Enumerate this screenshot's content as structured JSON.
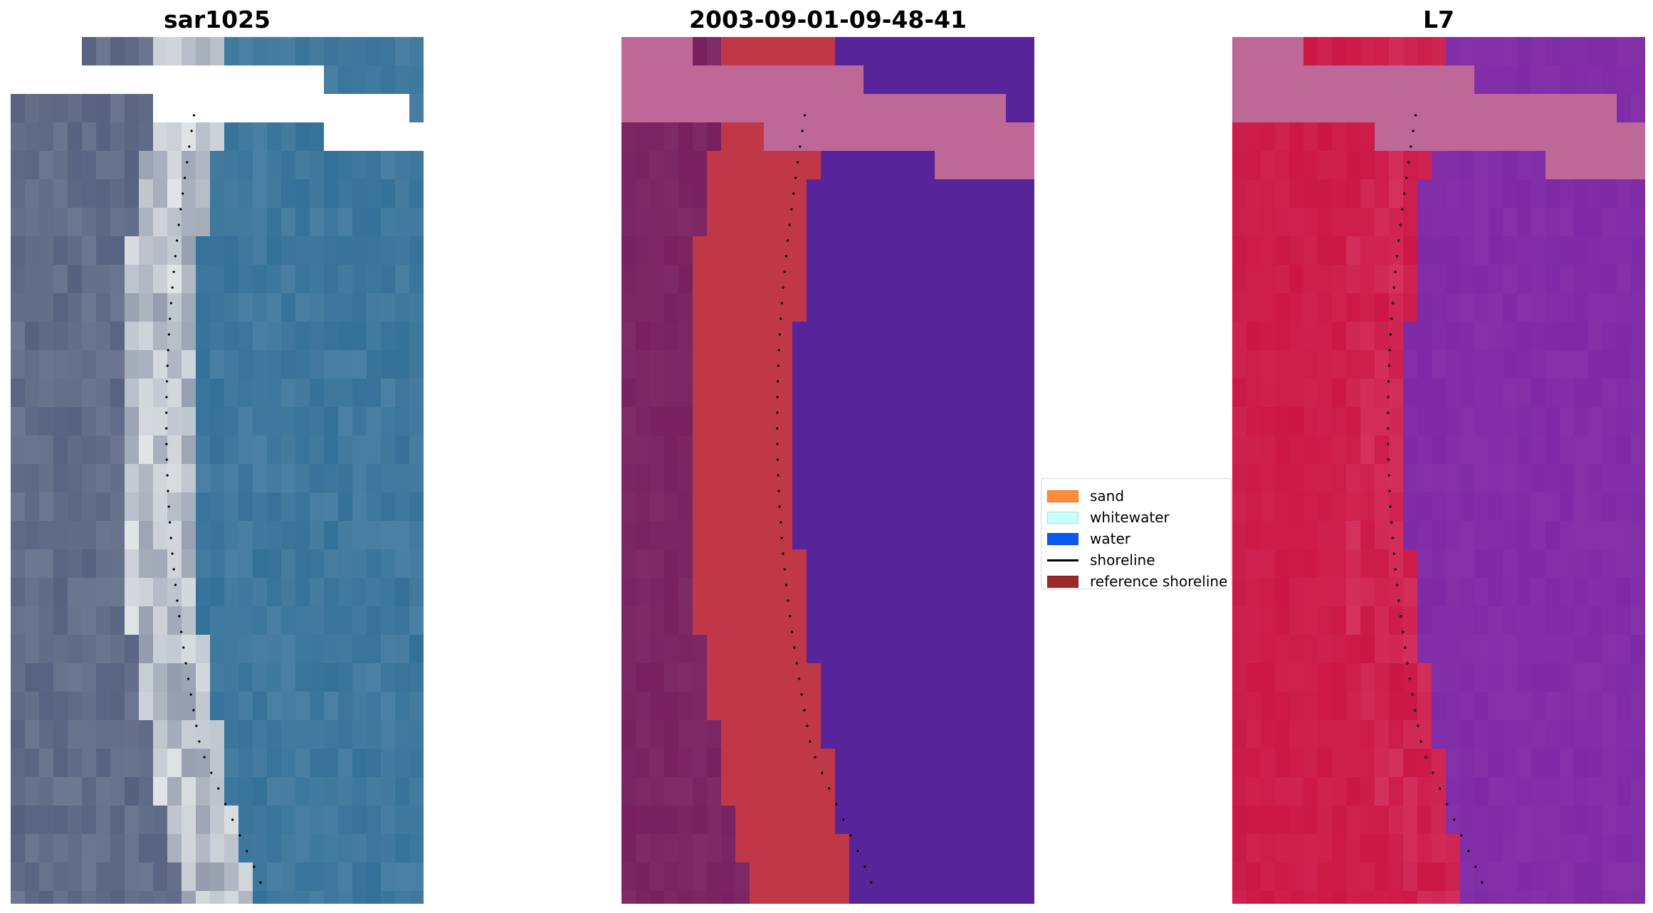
{
  "panels": {
    "rgb": {
      "title": "sar1025"
    },
    "classification": {
      "title": "2003-09-01-09-48-41"
    },
    "index": {
      "title": "L7"
    }
  },
  "legend": {
    "items": [
      {
        "label": "sand",
        "color": "#FF8C3A",
        "kind": "patch"
      },
      {
        "label": "whitewater",
        "color": "#C8FFFF",
        "kind": "patch"
      },
      {
        "label": "water",
        "color": "#0A5AF0",
        "kind": "patch"
      },
      {
        "label": "shoreline",
        "color": "#000000",
        "kind": "line"
      },
      {
        "label": "reference shoreline",
        "color": "#9A2A2A",
        "kind": "patch"
      }
    ]
  },
  "colors": {
    "rgb_land": "#4E5A7A",
    "rgb_surf": "#E8ECEC",
    "rgb_water": "#2A6A94",
    "class_land": "#782060",
    "class_sand": "#C03848",
    "class_water": "#58249A",
    "class_nodata": "#BE6898",
    "index_land": "#C8103E",
    "index_water": "#7E2AA6",
    "index_nodata": "#BE6898",
    "shoreline_dots": "#000000"
  }
}
